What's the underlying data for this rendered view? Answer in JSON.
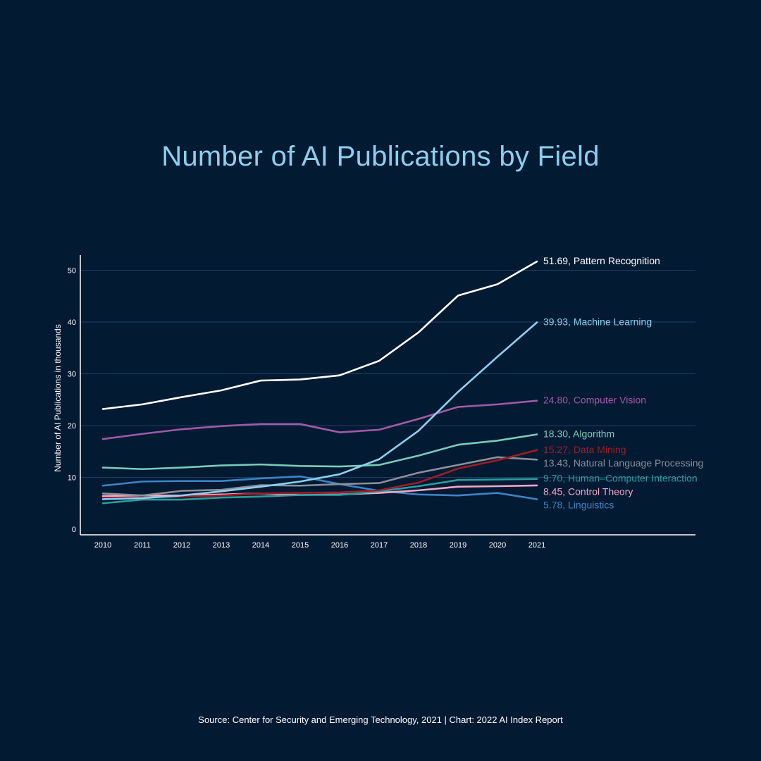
{
  "chart_data": {
    "type": "line",
    "title": "Number of AI Publications by Field",
    "xlabel": "",
    "ylabel": "Number of AI Publications in thousands",
    "x": [
      "2010",
      "2011",
      "2012",
      "2013",
      "2014",
      "2015",
      "2016",
      "2017",
      "2018",
      "2019",
      "2020",
      "2021"
    ],
    "yticks": [
      0,
      10,
      20,
      30,
      40,
      50
    ],
    "ylim": [
      0,
      55
    ],
    "grid": true,
    "series": [
      {
        "name": "Pattern Recognition",
        "label": "51.69, Pattern Recognition",
        "color": "#ffffff",
        "values": [
          23.2,
          24.1,
          25.5,
          26.8,
          28.7,
          28.9,
          29.7,
          32.5,
          38.0,
          45.1,
          47.3,
          51.69
        ]
      },
      {
        "name": "Machine Learning",
        "label": "39.93, Machine Learning",
        "color": "#8ccfee",
        "values": [
          5.8,
          6.0,
          6.5,
          7.3,
          8.2,
          9.2,
          10.6,
          13.5,
          19.0,
          26.5,
          33.3,
          39.93
        ]
      },
      {
        "name": "Computer Vision",
        "label": "24.80, Computer Vision",
        "color": "#a05aa5",
        "values": [
          17.4,
          18.4,
          19.3,
          19.9,
          20.3,
          20.3,
          18.7,
          19.2,
          21.3,
          23.6,
          24.1,
          24.8
        ]
      },
      {
        "name": "Algorithm",
        "label": "18.30, Algorithm",
        "color": "#78cbb8",
        "values": [
          11.9,
          11.6,
          11.9,
          12.3,
          12.5,
          12.2,
          12.1,
          12.4,
          14.2,
          16.3,
          17.1,
          18.3
        ]
      },
      {
        "name": "Data Mining",
        "label": "15.27, Data Mining",
        "color": "#a11d25",
        "values": [
          6.0,
          6.1,
          6.3,
          6.5,
          6.9,
          7.0,
          7.1,
          7.5,
          9.0,
          11.7,
          13.3,
          15.27
        ]
      },
      {
        "name": "Natural Language Processing",
        "label": "13.43, Natural Language Processing",
        "color": "#8a8f98",
        "values": [
          6.9,
          6.5,
          7.4,
          7.6,
          8.5,
          8.4,
          8.7,
          8.9,
          10.9,
          12.4,
          13.9,
          13.43
        ]
      },
      {
        "name": "Human-Computer Interaction",
        "label": "9.70, Human–Computer Interaction",
        "color": "#2a9d9c",
        "values": [
          5.0,
          5.7,
          5.7,
          6.1,
          6.3,
          6.6,
          6.6,
          7.3,
          8.3,
          9.5,
          9.6,
          9.7
        ]
      },
      {
        "name": "Control Theory",
        "label": "8.45, Control Theory",
        "color": "#f2a7c8",
        "values": [
          6.4,
          6.5,
          6.5,
          6.7,
          6.9,
          6.6,
          6.7,
          7.0,
          7.5,
          8.2,
          8.3,
          8.45
        ]
      },
      {
        "name": "Linguistics",
        "label": "5.78, Linguistics",
        "color": "#3c84c6",
        "values": [
          8.4,
          9.2,
          9.3,
          9.3,
          9.8,
          10.2,
          8.7,
          7.4,
          6.7,
          6.5,
          7.0,
          5.78
        ]
      }
    ],
    "source": "Source: Center for Security and Emerging Technology, 2021 | Chart: 2022 AI Index Report"
  }
}
